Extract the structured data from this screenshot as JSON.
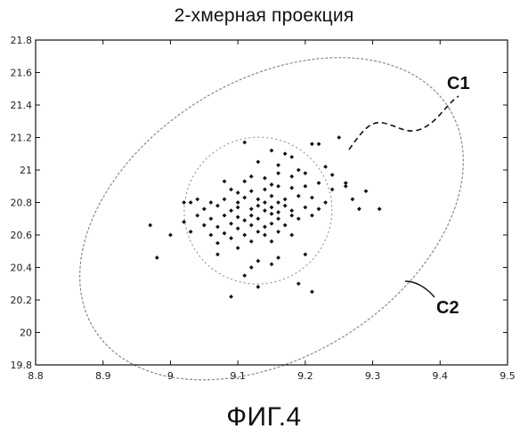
{
  "title": "2-хмерная проекция",
  "caption": "ФИГ.4",
  "chart_data": {
    "type": "scatter",
    "title": "2-хмерная проекция",
    "xlabel": "",
    "ylabel": "",
    "xlim": [
      8.8,
      9.5
    ],
    "ylim": [
      19.8,
      21.8
    ],
    "x_ticks": [
      "8.8",
      "8.9",
      "9",
      "9.1",
      "9.2",
      "9.3",
      "9.4",
      "9.5"
    ],
    "y_ticks": [
      "19.8",
      "20",
      "20.2",
      "20.4",
      "20.6",
      "20.8",
      "21",
      "21.2",
      "21.4",
      "21.6",
      "21.8"
    ],
    "grid": false,
    "legend": "none",
    "marker_color": "#111111",
    "contour_color": "#888888",
    "series": [
      {
        "points": [
          [
            9.11,
            21.17
          ],
          [
            9.21,
            21.16
          ],
          [
            9.22,
            21.16
          ],
          [
            9.25,
            21.2
          ],
          [
            9.17,
            21.1
          ],
          [
            9.15,
            21.12
          ],
          [
            9.18,
            21.08
          ],
          [
            9.13,
            21.05
          ],
          [
            9.16,
            21.03
          ],
          [
            9.08,
            20.93
          ],
          [
            9.11,
            20.93
          ],
          [
            9.12,
            20.96
          ],
          [
            9.14,
            20.95
          ],
          [
            9.16,
            20.98
          ],
          [
            9.18,
            20.96
          ],
          [
            9.15,
            20.91
          ],
          [
            9.09,
            20.88
          ],
          [
            9.1,
            20.86
          ],
          [
            9.12,
            20.87
          ],
          [
            9.14,
            20.88
          ],
          [
            9.16,
            20.9
          ],
          [
            9.18,
            20.89
          ],
          [
            9.2,
            20.9
          ],
          [
            9.22,
            20.92
          ],
          [
            9.24,
            20.88
          ],
          [
            9.26,
            20.9
          ],
          [
            9.03,
            20.8
          ],
          [
            9.04,
            20.82
          ],
          [
            9.06,
            20.8
          ],
          [
            9.08,
            20.82
          ],
          [
            9.1,
            20.8
          ],
          [
            9.11,
            20.83
          ],
          [
            9.13,
            20.82
          ],
          [
            9.15,
            20.84
          ],
          [
            9.17,
            20.82
          ],
          [
            9.19,
            20.84
          ],
          [
            9.21,
            20.83
          ],
          [
            9.23,
            20.8
          ],
          [
            9.05,
            20.76
          ],
          [
            9.07,
            20.78
          ],
          [
            9.09,
            20.75
          ],
          [
            9.1,
            20.77
          ],
          [
            9.12,
            20.76
          ],
          [
            9.13,
            20.78
          ],
          [
            9.14,
            20.75
          ],
          [
            9.15,
            20.77
          ],
          [
            9.16,
            20.74
          ],
          [
            9.17,
            20.78
          ],
          [
            9.18,
            20.75
          ],
          [
            9.2,
            20.77
          ],
          [
            9.22,
            20.76
          ],
          [
            9.04,
            20.72
          ],
          [
            9.06,
            20.7
          ],
          [
            9.08,
            20.72
          ],
          [
            9.1,
            20.71
          ],
          [
            9.11,
            20.69
          ],
          [
            9.12,
            20.72
          ],
          [
            9.13,
            20.7
          ],
          [
            9.15,
            20.73
          ],
          [
            9.16,
            20.7
          ],
          [
            9.18,
            20.72
          ],
          [
            9.19,
            20.7
          ],
          [
            9.21,
            20.72
          ],
          [
            9.02,
            20.68
          ],
          [
            9.05,
            20.66
          ],
          [
            9.07,
            20.65
          ],
          [
            9.09,
            20.67
          ],
          [
            9.1,
            20.64
          ],
          [
            9.12,
            20.66
          ],
          [
            9.14,
            20.65
          ],
          [
            9.15,
            20.67
          ],
          [
            9.17,
            20.66
          ],
          [
            9.03,
            20.62
          ],
          [
            9.06,
            20.6
          ],
          [
            9.08,
            20.61
          ],
          [
            9.11,
            20.6
          ],
          [
            9.13,
            20.62
          ],
          [
            9.14,
            20.6
          ],
          [
            9.16,
            20.62
          ],
          [
            9.18,
            20.6
          ],
          [
            9.0,
            20.6
          ],
          [
            9.09,
            20.58
          ],
          [
            9.12,
            20.56
          ],
          [
            9.15,
            20.56
          ],
          [
            9.07,
            20.55
          ],
          [
            9.1,
            20.52
          ],
          [
            8.97,
            20.66
          ],
          [
            9.02,
            20.8
          ],
          [
            9.07,
            20.48
          ],
          [
            9.13,
            20.44
          ],
          [
            9.15,
            20.42
          ],
          [
            9.12,
            20.4
          ],
          [
            9.16,
            20.46
          ],
          [
            9.2,
            20.48
          ],
          [
            9.11,
            20.35
          ],
          [
            9.13,
            20.28
          ],
          [
            9.09,
            20.22
          ],
          [
            9.19,
            20.3
          ],
          [
            9.21,
            20.25
          ],
          [
            8.98,
            20.46
          ],
          [
            9.31,
            20.76
          ],
          [
            9.28,
            20.76
          ],
          [
            9.29,
            20.87
          ],
          [
            9.26,
            20.92
          ],
          [
            9.24,
            20.97
          ],
          [
            9.23,
            21.02
          ],
          [
            9.27,
            20.82
          ],
          [
            9.19,
            21.0
          ],
          [
            9.2,
            20.98
          ],
          [
            9.14,
            20.8
          ],
          [
            9.16,
            20.8
          ]
        ]
      }
    ],
    "contours": [
      {
        "label": "C1",
        "center": [
          9.13,
          20.75
        ],
        "rx": 0.11,
        "ry": 0.45
      },
      {
        "label": "C2",
        "center": [
          9.15,
          20.7
        ],
        "rx": 0.31,
        "ry": 0.85
      }
    ]
  }
}
